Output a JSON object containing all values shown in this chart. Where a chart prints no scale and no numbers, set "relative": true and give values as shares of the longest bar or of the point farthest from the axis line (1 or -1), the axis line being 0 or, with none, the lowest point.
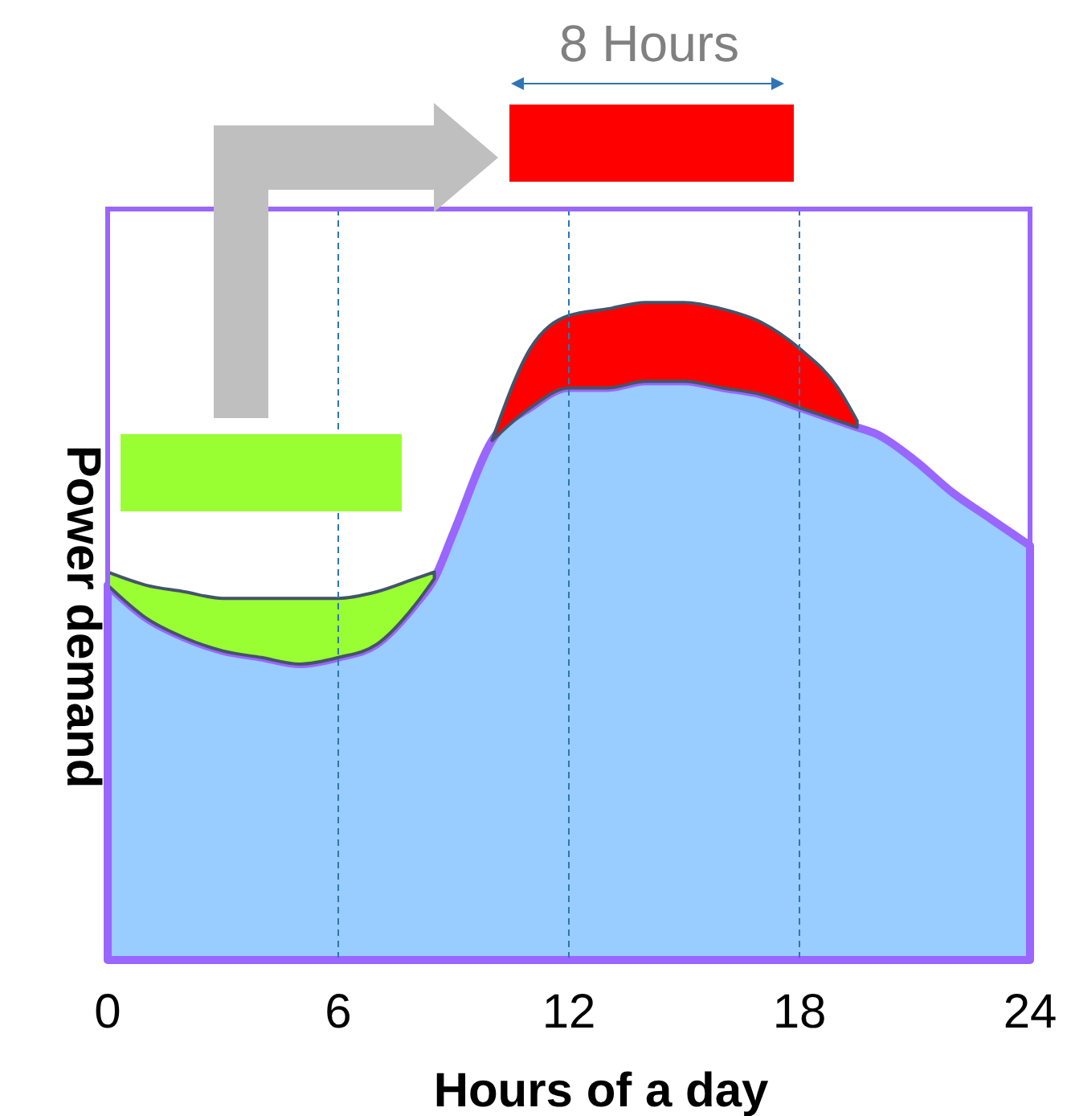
{
  "chart_data": {
    "type": "area",
    "stacked": true,
    "relative": true,
    "xlabel": "Hours of a day",
    "ylabel": "Power demand",
    "x": [
      0,
      1,
      2,
      3,
      4,
      5,
      6,
      7,
      8,
      8.5,
      9,
      10,
      11,
      12,
      13,
      14,
      15,
      16,
      17,
      18,
      19,
      19.5,
      20,
      21,
      22,
      23,
      24
    ],
    "series": [
      {
        "color": "#99ccff",
        "values": [
          0.57,
          0.52,
          0.49,
          0.47,
          0.46,
          0.45,
          0.46,
          0.48,
          0.54,
          0.58,
          0.65,
          0.79,
          0.84,
          0.87,
          0.87,
          0.88,
          0.88,
          0.87,
          0.86,
          0.84,
          0.82,
          0.81,
          0.8,
          0.76,
          0.71,
          0.67,
          0.63
        ]
      },
      {
        "color": "#99ff33",
        "values": [
          0.02,
          0.05,
          0.07,
          0.08,
          0.09,
          0.1,
          0.09,
          0.08,
          0.04,
          0.01,
          null,
          null,
          null,
          null,
          null,
          null,
          null,
          null,
          null,
          null,
          null,
          null,
          null,
          null,
          null,
          null,
          null
        ]
      },
      {
        "color": "#ff0000",
        "values": [
          null,
          null,
          null,
          null,
          null,
          null,
          null,
          null,
          null,
          null,
          null,
          0,
          0.09,
          0.11,
          0.12,
          0.12,
          0.12,
          0.12,
          0.11,
          0.09,
          0.05,
          0.01,
          null,
          null,
          null,
          null,
          null
        ]
      }
    ],
    "xlim": [
      0,
      24
    ],
    "xticks": [
      0,
      6,
      12,
      18,
      24
    ],
    "grid": "x",
    "line_style": "dashed",
    "annotations": [
      "8 Hours"
    ]
  }
}
